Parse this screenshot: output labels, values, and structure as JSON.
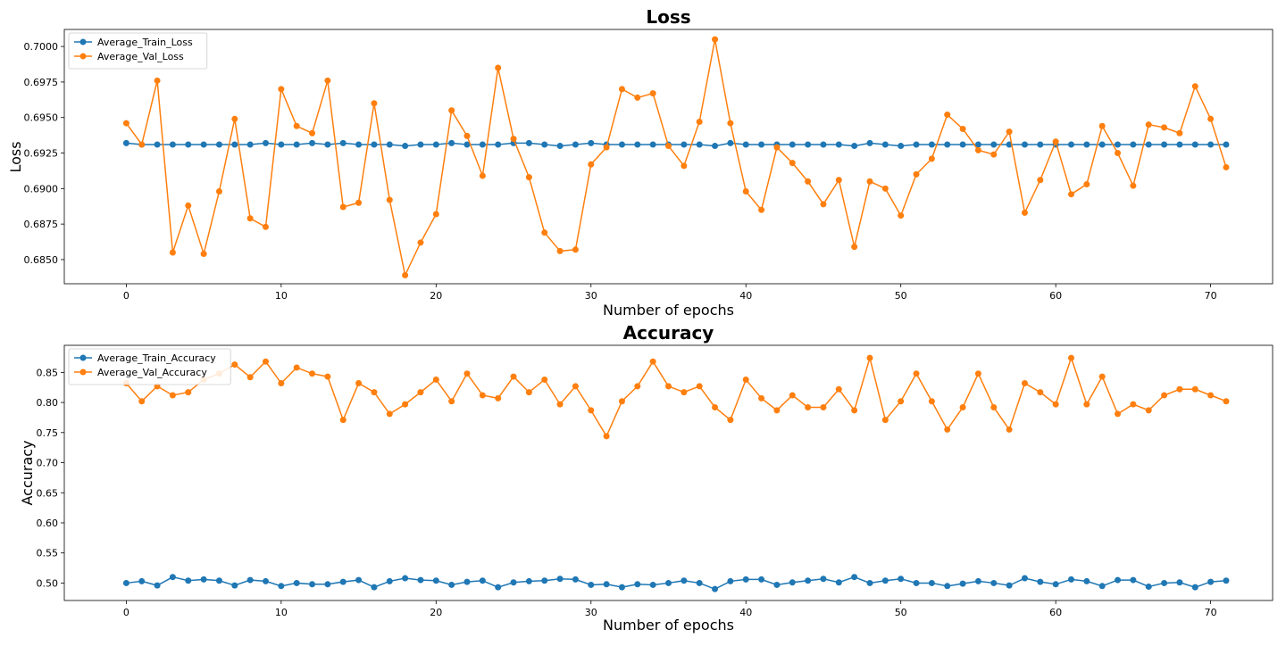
{
  "chart_data": [
    {
      "type": "line",
      "title": "Loss",
      "xlabel": "Number of epochs",
      "ylabel": "Loss",
      "xlim": [
        -4,
        74
      ],
      "ylim": [
        0.6833,
        0.7012
      ],
      "xticks": [
        0,
        10,
        20,
        30,
        40,
        50,
        60,
        70
      ],
      "yticks": [
        0.685,
        0.6875,
        0.69,
        0.6925,
        0.695,
        0.6975,
        0.7
      ],
      "ytick_labels": [
        "0.6850",
        "0.6875",
        "0.6900",
        "0.6925",
        "0.6950",
        "0.6975",
        "0.7000"
      ],
      "grid": false,
      "legend_position": "top-left",
      "series": [
        {
          "name": "Average_Train_Loss",
          "color": "#1f77b4",
          "values": [
            0.6932,
            0.6931,
            0.6931,
            0.6931,
            0.6931,
            0.6931,
            0.6931,
            0.6931,
            0.6931,
            0.6932,
            0.6931,
            0.6931,
            0.6932,
            0.6931,
            0.6932,
            0.6931,
            0.6931,
            0.6931,
            0.693,
            0.6931,
            0.6931,
            0.6932,
            0.6931,
            0.6931,
            0.6931,
            0.6932,
            0.6932,
            0.6931,
            0.693,
            0.6931,
            0.6932,
            0.6931,
            0.6931,
            0.6931,
            0.6931,
            0.6931,
            0.6931,
            0.6931,
            0.693,
            0.6932,
            0.6931,
            0.6931,
            0.6931,
            0.6931,
            0.6931,
            0.6931,
            0.6931,
            0.693,
            0.6932,
            0.6931,
            0.693,
            0.6931,
            0.6931,
            0.6931,
            0.6931,
            0.6931,
            0.6931,
            0.6931,
            0.6931,
            0.6931,
            0.6931,
            0.6931,
            0.6931,
            0.6931,
            0.6931,
            0.6931,
            0.6931,
            0.6931,
            0.6931,
            0.6931,
            0.6931,
            0.6931
          ]
        },
        {
          "name": "Average_Val_Loss",
          "color": "#ff7f0e",
          "values": [
            0.6946,
            0.6931,
            0.6976,
            0.6855,
            0.6888,
            0.6854,
            0.6898,
            0.6949,
            0.6879,
            0.6873,
            0.697,
            0.6944,
            0.6939,
            0.6976,
            0.6887,
            0.689,
            0.696,
            0.6892,
            0.6839,
            0.6862,
            0.6882,
            0.6955,
            0.6937,
            0.6909,
            0.6985,
            0.6935,
            0.6908,
            0.6869,
            0.6856,
            0.6857,
            0.6917,
            0.6929,
            0.697,
            0.6964,
            0.6967,
            0.693,
            0.6916,
            0.6947,
            0.7005,
            0.6946,
            0.6898,
            0.6885,
            0.6929,
            0.6918,
            0.6905,
            0.6889,
            0.6906,
            0.6859,
            0.6905,
            0.69,
            0.6881,
            0.691,
            0.6921,
            0.6952,
            0.6942,
            0.6927,
            0.6924,
            0.694,
            0.6883,
            0.6906,
            0.6933,
            0.6896,
            0.6903,
            0.6944,
            0.6925,
            0.6902,
            0.6945,
            0.6943,
            0.6939,
            0.6972,
            0.6949,
            0.6915
          ]
        }
      ]
    },
    {
      "type": "line",
      "title": "Accuracy",
      "xlabel": "Number of epochs",
      "ylabel": "Accuracy",
      "xlim": [
        -4,
        74
      ],
      "ylim": [
        0.471,
        0.895
      ],
      "xticks": [
        0,
        10,
        20,
        30,
        40,
        50,
        60,
        70
      ],
      "yticks": [
        0.5,
        0.55,
        0.6,
        0.65,
        0.7,
        0.75,
        0.8,
        0.85
      ],
      "ytick_labels": [
        "0.50",
        "0.55",
        "0.60",
        "0.65",
        "0.70",
        "0.75",
        "0.80",
        "0.85"
      ],
      "grid": false,
      "legend_position": "top-left",
      "series": [
        {
          "name": "Average_Train_Accuracy",
          "color": "#1f77b4",
          "values": [
            0.5,
            0.503,
            0.496,
            0.51,
            0.504,
            0.506,
            0.504,
            0.496,
            0.505,
            0.503,
            0.495,
            0.5,
            0.498,
            0.498,
            0.502,
            0.505,
            0.493,
            0.503,
            0.508,
            0.505,
            0.504,
            0.497,
            0.502,
            0.504,
            0.493,
            0.501,
            0.503,
            0.504,
            0.507,
            0.506,
            0.497,
            0.498,
            0.493,
            0.498,
            0.497,
            0.5,
            0.504,
            0.5,
            0.49,
            0.503,
            0.506,
            0.506,
            0.497,
            0.501,
            0.504,
            0.507,
            0.501,
            0.51,
            0.5,
            0.504,
            0.507,
            0.5,
            0.5,
            0.495,
            0.499,
            0.503,
            0.5,
            0.496,
            0.508,
            0.502,
            0.498,
            0.506,
            0.503,
            0.495,
            0.505,
            0.505,
            0.494,
            0.5,
            0.501,
            0.493,
            0.502,
            0.504
          ]
        },
        {
          "name": "Average_Val_Accuracy",
          "color": "#ff7f0e",
          "values": [
            0.832,
            0.802,
            0.827,
            0.812,
            0.817,
            0.838,
            0.848,
            0.863,
            0.842,
            0.868,
            0.832,
            0.858,
            0.848,
            0.843,
            0.771,
            0.832,
            0.817,
            0.781,
            0.797,
            0.817,
            0.838,
            0.802,
            0.848,
            0.812,
            0.807,
            0.843,
            0.817,
            0.838,
            0.797,
            0.827,
            0.787,
            0.744,
            0.802,
            0.827,
            0.868,
            0.827,
            0.817,
            0.827,
            0.792,
            0.771,
            0.838,
            0.807,
            0.787,
            0.812,
            0.792,
            0.792,
            0.822,
            0.787,
            0.874,
            0.771,
            0.802,
            0.848,
            0.802,
            0.755,
            0.792,
            0.848,
            0.792,
            0.755,
            0.832,
            0.817,
            0.797,
            0.874,
            0.797,
            0.843,
            0.781,
            0.797,
            0.787,
            0.812,
            0.822,
            0.822,
            0.812,
            0.802
          ]
        }
      ]
    }
  ]
}
